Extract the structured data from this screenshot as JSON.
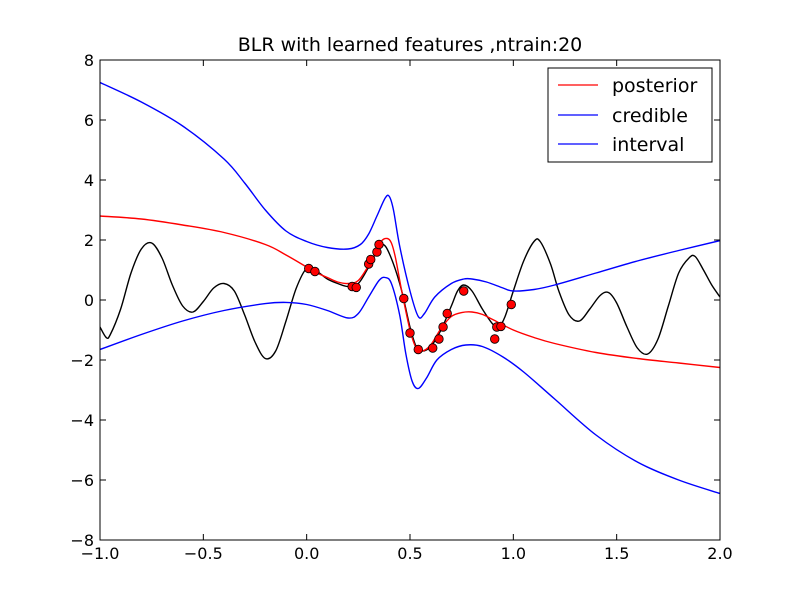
{
  "chart_data": {
    "type": "line",
    "title": "BLR with learned features ,ntrain:20",
    "xlabel": "",
    "ylabel": "",
    "xlim": [
      -1.0,
      2.0
    ],
    "ylim": [
      -8,
      8
    ],
    "xticks": [
      -1.0,
      -0.5,
      0.0,
      0.5,
      1.0,
      1.5,
      2.0
    ],
    "xtick_labels": [
      "−1.0",
      "−0.5",
      "0.0",
      "0.5",
      "1.0",
      "1.5",
      "2.0"
    ],
    "yticks": [
      -8,
      -6,
      -4,
      -2,
      0,
      2,
      4,
      6,
      8
    ],
    "ytick_labels": [
      "−8",
      "−6",
      "−4",
      "−2",
      "0",
      "2",
      "4",
      "6",
      "8"
    ],
    "grid": false,
    "legend": {
      "placement": "top-right",
      "entries": [
        {
          "label": "posterior",
          "color": "#ff0000"
        },
        {
          "label": "credible",
          "color": "#0000ff"
        },
        {
          "label": "interval",
          "color": "#0000ff"
        }
      ]
    },
    "series": [
      {
        "kind": "true-function",
        "color": "#000000",
        "points": [
          [
            -1.0,
            -0.9
          ],
          [
            -0.97,
            -1.25
          ],
          [
            -0.95,
            -1.15
          ],
          [
            -0.9,
            -0.3
          ],
          [
            -0.85,
            0.9
          ],
          [
            -0.8,
            1.7
          ],
          [
            -0.75,
            1.9
          ],
          [
            -0.7,
            1.4
          ],
          [
            -0.65,
            0.5
          ],
          [
            -0.6,
            -0.2
          ],
          [
            -0.55,
            -0.4
          ],
          [
            -0.5,
            -0.05
          ],
          [
            -0.45,
            0.4
          ],
          [
            -0.4,
            0.55
          ],
          [
            -0.35,
            0.3
          ],
          [
            -0.3,
            -0.5
          ],
          [
            -0.25,
            -1.4
          ],
          [
            -0.2,
            -1.95
          ],
          [
            -0.15,
            -1.7
          ],
          [
            -0.1,
            -0.7
          ],
          [
            -0.05,
            0.4
          ],
          [
            0.0,
            1.05
          ],
          [
            0.05,
            0.95
          ],
          [
            0.1,
            0.7
          ],
          [
            0.15,
            0.55
          ],
          [
            0.2,
            0.45
          ],
          [
            0.25,
            0.55
          ],
          [
            0.3,
            1.1
          ],
          [
            0.35,
            1.75
          ],
          [
            0.38,
            1.8
          ],
          [
            0.42,
            1.2
          ],
          [
            0.46,
            0.3
          ],
          [
            0.5,
            -0.9
          ],
          [
            0.53,
            -1.55
          ],
          [
            0.56,
            -1.7
          ],
          [
            0.6,
            -1.55
          ],
          [
            0.65,
            -1.0
          ],
          [
            0.7,
            -0.2
          ],
          [
            0.73,
            0.3
          ],
          [
            0.76,
            0.5
          ],
          [
            0.8,
            0.3
          ],
          [
            0.85,
            -0.3
          ],
          [
            0.9,
            -0.8
          ],
          [
            0.93,
            -0.9
          ],
          [
            0.96,
            -0.55
          ],
          [
            1.0,
            0.3
          ],
          [
            1.05,
            1.3
          ],
          [
            1.1,
            1.95
          ],
          [
            1.13,
            1.95
          ],
          [
            1.18,
            1.2
          ],
          [
            1.22,
            0.3
          ],
          [
            1.27,
            -0.5
          ],
          [
            1.32,
            -0.7
          ],
          [
            1.37,
            -0.3
          ],
          [
            1.42,
            0.15
          ],
          [
            1.46,
            0.25
          ],
          [
            1.5,
            -0.1
          ],
          [
            1.55,
            -0.9
          ],
          [
            1.6,
            -1.6
          ],
          [
            1.65,
            -1.8
          ],
          [
            1.7,
            -1.3
          ],
          [
            1.75,
            -0.2
          ],
          [
            1.8,
            0.9
          ],
          [
            1.85,
            1.4
          ],
          [
            1.88,
            1.45
          ],
          [
            1.92,
            1.0
          ],
          [
            1.96,
            0.5
          ],
          [
            2.0,
            0.1
          ]
        ]
      },
      {
        "kind": "posterior-mean",
        "name": "posterior",
        "color": "#ff0000",
        "points": [
          [
            -1.0,
            2.8
          ],
          [
            -0.8,
            2.7
          ],
          [
            -0.6,
            2.5
          ],
          [
            -0.4,
            2.25
          ],
          [
            -0.2,
            1.85
          ],
          [
            -0.1,
            1.5
          ],
          [
            0.0,
            1.1
          ],
          [
            0.05,
            0.9
          ],
          [
            0.1,
            0.75
          ],
          [
            0.15,
            0.6
          ],
          [
            0.2,
            0.55
          ],
          [
            0.25,
            0.65
          ],
          [
            0.3,
            1.15
          ],
          [
            0.33,
            1.5
          ],
          [
            0.36,
            1.95
          ],
          [
            0.39,
            2.05
          ],
          [
            0.41,
            1.9
          ],
          [
            0.43,
            1.4
          ],
          [
            0.46,
            0.3
          ],
          [
            0.5,
            -1.0
          ],
          [
            0.53,
            -1.6
          ],
          [
            0.56,
            -1.7
          ],
          [
            0.6,
            -1.5
          ],
          [
            0.65,
            -0.95
          ],
          [
            0.7,
            -0.55
          ],
          [
            0.75,
            -0.42
          ],
          [
            0.8,
            -0.4
          ],
          [
            0.85,
            -0.48
          ],
          [
            0.9,
            -0.65
          ],
          [
            1.0,
            -1.0
          ],
          [
            1.1,
            -1.25
          ],
          [
            1.2,
            -1.45
          ],
          [
            1.4,
            -1.75
          ],
          [
            1.6,
            -1.95
          ],
          [
            1.8,
            -2.1
          ],
          [
            2.0,
            -2.25
          ]
        ]
      },
      {
        "kind": "credible-upper",
        "name": "credible",
        "color": "#0000ff",
        "points": [
          [
            -1.0,
            7.25
          ],
          [
            -0.8,
            6.6
          ],
          [
            -0.6,
            5.8
          ],
          [
            -0.4,
            4.7
          ],
          [
            -0.3,
            3.9
          ],
          [
            -0.2,
            3.0
          ],
          [
            -0.1,
            2.3
          ],
          [
            0.0,
            1.95
          ],
          [
            0.1,
            1.75
          ],
          [
            0.2,
            1.7
          ],
          [
            0.26,
            1.85
          ],
          [
            0.3,
            2.2
          ],
          [
            0.34,
            2.8
          ],
          [
            0.38,
            3.4
          ],
          [
            0.4,
            3.45
          ],
          [
            0.42,
            3.0
          ],
          [
            0.45,
            1.8
          ],
          [
            0.5,
            0.3
          ],
          [
            0.54,
            -0.55
          ],
          [
            0.57,
            -0.45
          ],
          [
            0.62,
            0.1
          ],
          [
            0.7,
            0.55
          ],
          [
            0.76,
            0.7
          ],
          [
            0.8,
            0.7
          ],
          [
            0.87,
            0.6
          ],
          [
            0.95,
            0.4
          ],
          [
            1.0,
            0.3
          ],
          [
            1.1,
            0.35
          ],
          [
            1.2,
            0.5
          ],
          [
            1.4,
            0.9
          ],
          [
            1.6,
            1.3
          ],
          [
            1.8,
            1.65
          ],
          [
            2.0,
            1.98
          ]
        ]
      },
      {
        "kind": "credible-lower",
        "name": "interval",
        "color": "#0000ff",
        "points": [
          [
            -1.0,
            -1.65
          ],
          [
            -0.8,
            -1.15
          ],
          [
            -0.6,
            -0.7
          ],
          [
            -0.4,
            -0.35
          ],
          [
            -0.2,
            -0.12
          ],
          [
            -0.1,
            -0.08
          ],
          [
            0.0,
            -0.15
          ],
          [
            0.1,
            -0.35
          ],
          [
            0.2,
            -0.6
          ],
          [
            0.25,
            -0.45
          ],
          [
            0.3,
            0.1
          ],
          [
            0.35,
            0.65
          ],
          [
            0.38,
            0.75
          ],
          [
            0.41,
            0.55
          ],
          [
            0.45,
            -0.5
          ],
          [
            0.48,
            -1.8
          ],
          [
            0.51,
            -2.7
          ],
          [
            0.54,
            -2.95
          ],
          [
            0.58,
            -2.6
          ],
          [
            0.63,
            -2.0
          ],
          [
            0.7,
            -1.65
          ],
          [
            0.77,
            -1.5
          ],
          [
            0.85,
            -1.55
          ],
          [
            0.95,
            -1.9
          ],
          [
            1.05,
            -2.4
          ],
          [
            1.2,
            -3.3
          ],
          [
            1.4,
            -4.5
          ],
          [
            1.6,
            -5.4
          ],
          [
            1.8,
            -6.0
          ],
          [
            2.0,
            -6.45
          ]
        ]
      }
    ],
    "training_points": {
      "name": "ntrain",
      "color": "#ff0000",
      "points": [
        [
          0.01,
          1.05
        ],
        [
          0.04,
          0.95
        ],
        [
          0.22,
          0.45
        ],
        [
          0.24,
          0.42
        ],
        [
          0.3,
          1.2
        ],
        [
          0.31,
          1.35
        ],
        [
          0.34,
          1.6
        ],
        [
          0.35,
          1.85
        ],
        [
          0.47,
          0.05
        ],
        [
          0.5,
          -1.1
        ],
        [
          0.54,
          -1.65
        ],
        [
          0.61,
          -1.6
        ],
        [
          0.64,
          -1.3
        ],
        [
          0.66,
          -0.9
        ],
        [
          0.68,
          -0.45
        ],
        [
          0.76,
          0.3
        ],
        [
          0.91,
          -1.3
        ],
        [
          0.92,
          -0.9
        ],
        [
          0.94,
          -0.88
        ],
        [
          0.99,
          -0.15
        ]
      ]
    }
  }
}
